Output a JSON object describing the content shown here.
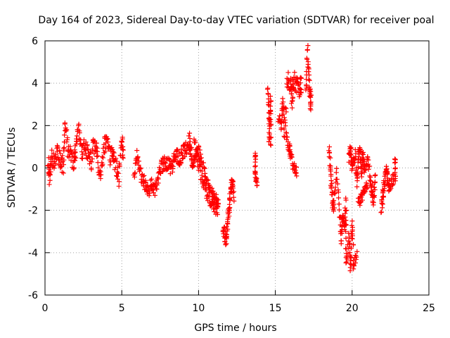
{
  "chart_data": {
    "type": "scatter",
    "title": "Day 164 of 2023, Sidereal Day-to-day VTEC variation (SDTVAR) for receiver poal",
    "xlabel": "GPS time / hours",
    "ylabel": "SDTVAR / TECUs",
    "xlim": [
      0,
      25
    ],
    "ylim": [
      -6,
      6
    ],
    "xticks": [
      0,
      5,
      10,
      15,
      20,
      25
    ],
    "yticks": [
      -6,
      -4,
      -2,
      0,
      2,
      4,
      6
    ],
    "grid": true,
    "marker": "+",
    "color": "#ff0000",
    "series": [
      {
        "name": "SDTVAR",
        "segments": [
          {
            "points": [
              [
                0.2,
                0.3
              ],
              [
                0.3,
                -0.5
              ],
              [
                0.4,
                0.6
              ],
              [
                0.6,
                0.2
              ],
              [
                0.8,
                0.7
              ],
              [
                1.0,
                0.4
              ],
              [
                1.2,
                0.1
              ],
              [
                1.3,
                1.9
              ],
              [
                1.5,
                0.8
              ],
              [
                1.7,
                0.5
              ],
              [
                1.9,
                0.3
              ],
              [
                2.0,
                0.9
              ],
              [
                2.2,
                1.7
              ],
              [
                2.4,
                0.6
              ],
              [
                2.6,
                1.0
              ],
              [
                2.8,
                0.5
              ],
              [
                3.0,
                0.3
              ],
              [
                3.2,
                1.1
              ],
              [
                3.4,
                0.7
              ],
              [
                3.6,
                -0.5
              ],
              [
                3.8,
                0.9
              ],
              [
                4.0,
                1.3
              ],
              [
                4.2,
                0.5
              ],
              [
                4.4,
                0.8
              ],
              [
                4.6,
                0.2
              ],
              [
                4.8,
                -0.6
              ],
              [
                5.0,
                1.5
              ],
              [
                5.1,
                0.6
              ]
            ],
            "spread": 0.45
          },
          {
            "points": [
              [
                5.8,
                -0.3
              ],
              [
                6.0,
                0.5
              ],
              [
                6.2,
                -0.2
              ],
              [
                6.4,
                -0.6
              ],
              [
                6.6,
                -0.9
              ],
              [
                6.8,
                -1.1
              ],
              [
                7.0,
                -0.7
              ],
              [
                7.2,
                -1.1
              ],
              [
                7.4,
                -0.3
              ],
              [
                7.6,
                0.1
              ],
              [
                7.8,
                0.3
              ],
              [
                8.0,
                0.2
              ],
              [
                8.2,
                0.0
              ],
              [
                8.4,
                0.3
              ],
              [
                8.6,
                0.6
              ],
              [
                8.8,
                0.4
              ],
              [
                9.0,
                0.8
              ],
              [
                9.2,
                0.9
              ],
              [
                9.4,
                1.3
              ],
              [
                9.5,
                0.7
              ],
              [
                9.6,
                0.3
              ],
              [
                9.8,
                0.6
              ],
              [
                10.0,
                0.2
              ],
              [
                10.2,
                -0.3
              ],
              [
                10.4,
                -0.8
              ],
              [
                10.6,
                -1.2
              ],
              [
                10.8,
                -1.5
              ],
              [
                11.0,
                -1.8
              ],
              [
                11.2,
                -2.0
              ],
              [
                11.3,
                -1.6
              ]
            ],
            "spread": 0.35
          },
          {
            "points": [
              [
                9.7,
                1.2
              ],
              [
                10.0,
                0.9
              ],
              [
                10.3,
                0.0
              ],
              [
                10.6,
                -0.6
              ],
              [
                10.9,
                -1.1
              ],
              [
                11.2,
                -1.5
              ]
            ],
            "spread": 0.25
          },
          {
            "points": [
              [
                11.6,
                -2.8
              ],
              [
                11.7,
                -3.2
              ],
              [
                11.8,
                -3.4
              ],
              [
                11.9,
                -2.6
              ],
              [
                12.0,
                -1.8
              ],
              [
                12.1,
                -1.2
              ],
              [
                12.2,
                -0.5
              ],
              [
                12.3,
                -1.5
              ]
            ],
            "spread": 0.3
          },
          {
            "points": [
              [
                13.7,
                0.7
              ],
              [
                13.7,
                -0.3
              ],
              [
                13.8,
                -0.8
              ]
            ],
            "spread": 0.15
          },
          {
            "points": [
              [
                14.5,
                3.7
              ],
              [
                14.6,
                2.6
              ],
              [
                14.6,
                1.2
              ],
              [
                14.7,
                3.3
              ],
              [
                14.7,
                0.9
              ]
            ],
            "spread": 0.25
          },
          {
            "points": [
              [
                15.2,
                2.4
              ],
              [
                15.4,
                2.0
              ],
              [
                15.5,
                3.2
              ],
              [
                15.6,
                1.5
              ],
              [
                15.8,
                4.4
              ],
              [
                16.0,
                3.9
              ],
              [
                16.1,
                3.2
              ],
              [
                16.2,
                4.1
              ],
              [
                16.4,
                4.0
              ],
              [
                16.6,
                3.5
              ],
              [
                16.7,
                4.2
              ]
            ],
            "spread": 0.45
          },
          {
            "points": [
              [
                15.7,
                1.5
              ],
              [
                15.9,
                1.0
              ],
              [
                16.0,
                0.5
              ],
              [
                16.2,
                0.0
              ],
              [
                16.4,
                -0.2
              ]
            ],
            "spread": 0.25
          },
          {
            "points": [
              [
                17.0,
                3.5
              ],
              [
                17.1,
                5.5
              ],
              [
                17.2,
                4.0
              ],
              [
                17.3,
                3.0
              ],
              [
                17.3,
                3.5
              ]
            ],
            "spread": 0.35
          },
          {
            "points": [
              [
                18.5,
                1.0
              ],
              [
                18.6,
                -0.3
              ],
              [
                18.7,
                -1.3
              ],
              [
                18.8,
                -2.0
              ],
              [
                19.0,
                -0.3
              ],
              [
                19.2,
                -2.3
              ],
              [
                19.3,
                -3.4
              ],
              [
                19.4,
                -2.0
              ],
              [
                19.5,
                -2.8
              ],
              [
                19.6,
                -1.6
              ],
              [
                19.6,
                -4.6
              ],
              [
                19.8,
                -3.2
              ],
              [
                19.9,
                -4.9
              ],
              [
                20.0,
                -2.5
              ],
              [
                20.1,
                -4.5
              ],
              [
                20.3,
                -4.2
              ]
            ],
            "spread": 0.3
          },
          {
            "points": [
              [
                19.8,
                0.5
              ],
              [
                19.9,
                0.9
              ],
              [
                20.0,
                0.1
              ],
              [
                20.2,
                0.6
              ],
              [
                20.3,
                -0.6
              ],
              [
                20.4,
                0.3
              ],
              [
                20.5,
                1.1
              ],
              [
                20.6,
                -0.3
              ],
              [
                20.7,
                0.6
              ],
              [
                20.8,
                0.0
              ],
              [
                21.0,
                0.4
              ],
              [
                21.2,
                -0.6
              ],
              [
                21.3,
                -1.1
              ],
              [
                21.4,
                -1.5
              ],
              [
                21.5,
                -0.3
              ]
            ],
            "spread": 0.3
          },
          {
            "points": [
              [
                20.4,
                -1.7
              ],
              [
                20.6,
                -1.4
              ],
              [
                20.8,
                -1.0
              ],
              [
                21.0,
                -0.8
              ]
            ],
            "spread": 0.25
          },
          {
            "points": [
              [
                21.9,
                -2.0
              ],
              [
                22.0,
                -1.3
              ],
              [
                22.1,
                -0.8
              ],
              [
                22.2,
                0.0
              ],
              [
                22.3,
                -0.5
              ],
              [
                22.4,
                -1.0
              ],
              [
                22.6,
                -0.6
              ],
              [
                22.8,
                -0.4
              ],
              [
                22.8,
                0.5
              ]
            ],
            "spread": 0.3
          }
        ]
      }
    ]
  }
}
